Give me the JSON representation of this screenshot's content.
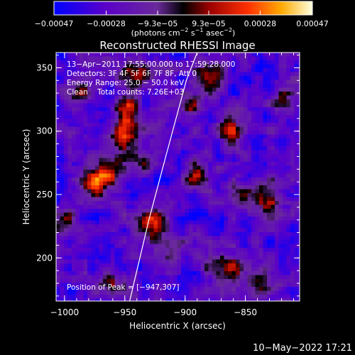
{
  "chart_data": {
    "type": "heatmap",
    "title": "Reconstructed RHESSI Image",
    "xlabel": "Heliocentric X (arcsec)",
    "ylabel": "Heliocentric Y (arcsec)",
    "xlim": [
      -1007,
      -805
    ],
    "ylim": [
      166,
      362
    ],
    "xticks": [
      -1000,
      -950,
      -900,
      -850
    ],
    "xtick_labels": [
      "−1000",
      "−950",
      "−900",
      "−850"
    ],
    "yticks": [
      200,
      250,
      300,
      350
    ],
    "ytick_labels": [
      "200",
      "250",
      "300",
      "350"
    ],
    "colorbar": {
      "range": [
        -0.00047,
        0.00047
      ],
      "ticks": [
        -0.00047,
        -0.00028,
        -9.3e-05,
        9.3e-05,
        0.00028,
        0.00047
      ],
      "tick_labels": [
        "−0.00047",
        "−0.00028",
        "−9.3e−05",
        "9.3e−05",
        "0.00028",
        "0.00047"
      ],
      "unit_prefix": "(photons cm",
      "unit_exp1": "−2",
      "unit_mid": " s",
      "unit_exp2": "−1",
      "unit_mid2": " asec",
      "unit_exp3": "−2",
      "unit_suffix": ")"
    },
    "annotations": [
      "13−Apr−2011 17:55:00.000 to 17:59:28.000",
      "Detectors: 3F 4F 5F 6F 7F 8F, Att 0",
      "Energy Range: 25.0 − 50.0 keV",
      "Clean    Total counts: 7.26E+03"
    ],
    "peak_label": "Position of Peak = [−947,307]",
    "peak": [
      -947,
      307
    ],
    "limb_curve": [
      [
        -946,
        166
      ],
      [
        -930,
        230
      ],
      [
        -916,
        280
      ],
      [
        -899,
        340
      ],
      [
        -890,
        362
      ]
    ],
    "sources": [
      {
        "x": -948,
        "y": 308,
        "amp": 1.0,
        "sx": 8,
        "sy": 14
      },
      {
        "x": -925,
        "y": 228,
        "amp": 0.85,
        "sx": 9,
        "sy": 10
      },
      {
        "x": -975,
        "y": 260,
        "amp": 0.75,
        "sx": 9,
        "sy": 9
      },
      {
        "x": -960,
        "y": 270,
        "amp": 0.55,
        "sx": 10,
        "sy": 8
      },
      {
        "x": -1000,
        "y": 230,
        "amp": 0.55,
        "sx": 7,
        "sy": 9
      },
      {
        "x": -990,
        "y": 330,
        "amp": 0.5,
        "sx": 9,
        "sy": 8
      },
      {
        "x": -940,
        "y": 345,
        "amp": 0.5,
        "sx": 10,
        "sy": 7
      },
      {
        "x": -898,
        "y": 320,
        "amp": 0.55,
        "sx": 7,
        "sy": 9
      },
      {
        "x": -890,
        "y": 265,
        "amp": 0.6,
        "sx": 8,
        "sy": 9
      },
      {
        "x": -880,
        "y": 345,
        "amp": 0.7,
        "sx": 8,
        "sy": 9
      },
      {
        "x": -862,
        "y": 298,
        "amp": 0.7,
        "sx": 6,
        "sy": 10
      },
      {
        "x": -830,
        "y": 245,
        "amp": 0.65,
        "sx": 9,
        "sy": 10
      },
      {
        "x": -855,
        "y": 250,
        "amp": 0.5,
        "sx": 8,
        "sy": 8
      },
      {
        "x": -865,
        "y": 192,
        "amp": 0.75,
        "sx": 11,
        "sy": 9
      },
      {
        "x": -838,
        "y": 182,
        "amp": 0.6,
        "sx": 9,
        "sy": 8
      },
      {
        "x": -912,
        "y": 202,
        "amp": 0.55,
        "sx": 8,
        "sy": 8
      },
      {
        "x": -960,
        "y": 180,
        "amp": 0.5,
        "sx": 10,
        "sy": 8
      },
      {
        "x": -935,
        "y": 275,
        "amp": 0.5,
        "sx": 7,
        "sy": 8
      },
      {
        "x": -818,
        "y": 325,
        "amp": 0.5,
        "sx": 7,
        "sy": 8
      }
    ]
  },
  "footer": {
    "timestamp": "10−May−2022 17:21"
  }
}
